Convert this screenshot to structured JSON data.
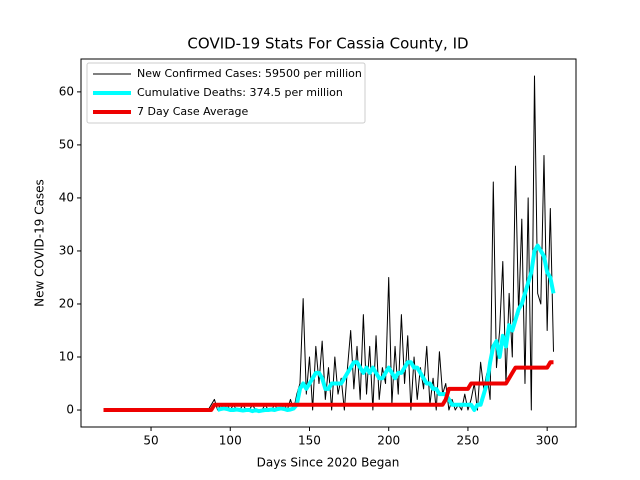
{
  "chart_data": {
    "type": "line",
    "title": "COVID-19 Stats For Cassia County, ID",
    "x_label": "Days Since 2020 Began",
    "y_label": "New COVID-19 Cases",
    "x": [
      20,
      22,
      24,
      26,
      28,
      30,
      32,
      34,
      36,
      38,
      40,
      42,
      44,
      46,
      48,
      50,
      52,
      54,
      56,
      58,
      60,
      62,
      64,
      66,
      68,
      70,
      72,
      74,
      76,
      78,
      80,
      82,
      84,
      86,
      88,
      90,
      92,
      94,
      96,
      98,
      100,
      102,
      104,
      106,
      108,
      110,
      112,
      114,
      116,
      118,
      120,
      122,
      124,
      126,
      128,
      130,
      132,
      134,
      136,
      138,
      140,
      142,
      144,
      146,
      148,
      150,
      152,
      154,
      156,
      158,
      160,
      162,
      164,
      166,
      168,
      170,
      172,
      174,
      176,
      178,
      180,
      182,
      184,
      186,
      188,
      190,
      192,
      194,
      196,
      198,
      200,
      202,
      204,
      206,
      208,
      210,
      212,
      214,
      216,
      218,
      220,
      222,
      224,
      226,
      228,
      230,
      232,
      234,
      236,
      238,
      240,
      242,
      244,
      246,
      248,
      250,
      252,
      254,
      256,
      258,
      260,
      262,
      264,
      266,
      268,
      270,
      272,
      274,
      276,
      278,
      280,
      282,
      284,
      286,
      288,
      290,
      292,
      294,
      296,
      298,
      300,
      302,
      304
    ],
    "series": [
      {
        "name": "New Confirmed Cases: 59500 per million",
        "color": "#000000",
        "width": 1,
        "values": [
          0,
          0,
          0,
          0,
          0,
          0,
          0,
          0,
          0,
          0,
          0,
          0,
          0,
          0,
          0,
          0,
          0,
          0,
          0,
          0,
          0,
          0,
          0,
          0,
          0,
          0,
          0,
          0,
          0,
          0,
          0,
          0,
          0,
          0,
          1,
          2,
          0,
          1,
          0,
          1,
          0,
          1,
          0,
          0,
          1,
          0,
          0,
          1,
          0,
          0,
          0,
          1,
          0,
          0,
          1,
          0,
          0,
          1,
          0,
          2,
          0,
          3,
          5,
          21,
          3,
          10,
          0,
          12,
          5,
          13,
          2,
          8,
          0,
          10,
          3,
          6,
          0,
          8,
          15,
          4,
          12,
          2,
          18,
          3,
          12,
          0,
          14,
          2,
          8,
          5,
          25,
          1,
          12,
          3,
          18,
          5,
          14,
          0,
          10,
          2,
          8,
          4,
          12,
          1,
          6,
          0,
          11,
          3,
          5,
          0,
          2,
          0,
          1,
          0,
          3,
          0,
          2,
          5,
          0,
          9,
          4,
          7,
          2,
          43,
          8,
          15,
          28,
          5,
          22,
          10,
          46,
          18,
          36,
          5,
          40,
          0,
          63,
          22,
          20,
          48,
          15,
          38,
          11
        ]
      },
      {
        "name": "Cumulative Deaths: 374.5 per million",
        "color": "#00ffff",
        "width": 4,
        "values": [
          null,
          null,
          null,
          null,
          null,
          null,
          null,
          null,
          null,
          null,
          null,
          null,
          null,
          null,
          null,
          null,
          null,
          null,
          null,
          null,
          null,
          null,
          null,
          null,
          null,
          null,
          null,
          null,
          null,
          null,
          null,
          null,
          null,
          null,
          null,
          null,
          0,
          0.2,
          0.3,
          0.2,
          0,
          0,
          0.1,
          0,
          -0.1,
          0,
          0,
          -0.2,
          0,
          -0.2,
          -0.1,
          0,
          0,
          0.1,
          0,
          0.2,
          0.3,
          0.2,
          0,
          0.1,
          0.3,
          1,
          4,
          5,
          4,
          5,
          6,
          7,
          7,
          6,
          4,
          4,
          5,
          5,
          5,
          5,
          6,
          7,
          8,
          9,
          9,
          8,
          7,
          8,
          7,
          8,
          7,
          6,
          6,
          7,
          8,
          7,
          6,
          7,
          7,
          8,
          9,
          9,
          8,
          8,
          7,
          6,
          5,
          5,
          4,
          4,
          3,
          3,
          3,
          2,
          1,
          1,
          1,
          1,
          1,
          1,
          1,
          0,
          1,
          1,
          3,
          5,
          9,
          12,
          13,
          10,
          14,
          12,
          16,
          15,
          17,
          19,
          20,
          22,
          24,
          26,
          30,
          31,
          30,
          29,
          26,
          25,
          22
        ]
      },
      {
        "name": "7 Day Case Average",
        "color": "#ee0000",
        "width": 4,
        "values": [
          0,
          0,
          0,
          0,
          0,
          0,
          0,
          0,
          0,
          0,
          0,
          0,
          0,
          0,
          0,
          0,
          0,
          0,
          0,
          0,
          0,
          0,
          0,
          0,
          0,
          0,
          0,
          0,
          0,
          0,
          0,
          0,
          0,
          0,
          0,
          1,
          1,
          1,
          1,
          1,
          1,
          1,
          1,
          1,
          1,
          1,
          1,
          1,
          1,
          1,
          1,
          1,
          1,
          1,
          1,
          1,
          1,
          1,
          1,
          1,
          1,
          1,
          1,
          1,
          1,
          1,
          1,
          1,
          1,
          1,
          1,
          1,
          1,
          1,
          1,
          1,
          1,
          1,
          1,
          1,
          1,
          1,
          1,
          1,
          1,
          1,
          1,
          1,
          1,
          1,
          1,
          1,
          1,
          1,
          1,
          1,
          1,
          1,
          1,
          1,
          1,
          1,
          1,
          1,
          1,
          1,
          1,
          1,
          2,
          4,
          4,
          4,
          4,
          4,
          4,
          4,
          5,
          5,
          5,
          5,
          5,
          5,
          5,
          5,
          5,
          5,
          5,
          5,
          6,
          7,
          8,
          8,
          8,
          8,
          8,
          8,
          8,
          8,
          8,
          8,
          8,
          9,
          9
        ]
      }
    ],
    "xlim": [
      5.8,
      318.2
    ],
    "ylim": [
      -3.2,
      66.2
    ],
    "xticks": [
      50,
      100,
      150,
      200,
      250,
      300
    ],
    "yticks": [
      0,
      10,
      20,
      30,
      40,
      50,
      60
    ],
    "legend": "upper left",
    "grid": false
  }
}
